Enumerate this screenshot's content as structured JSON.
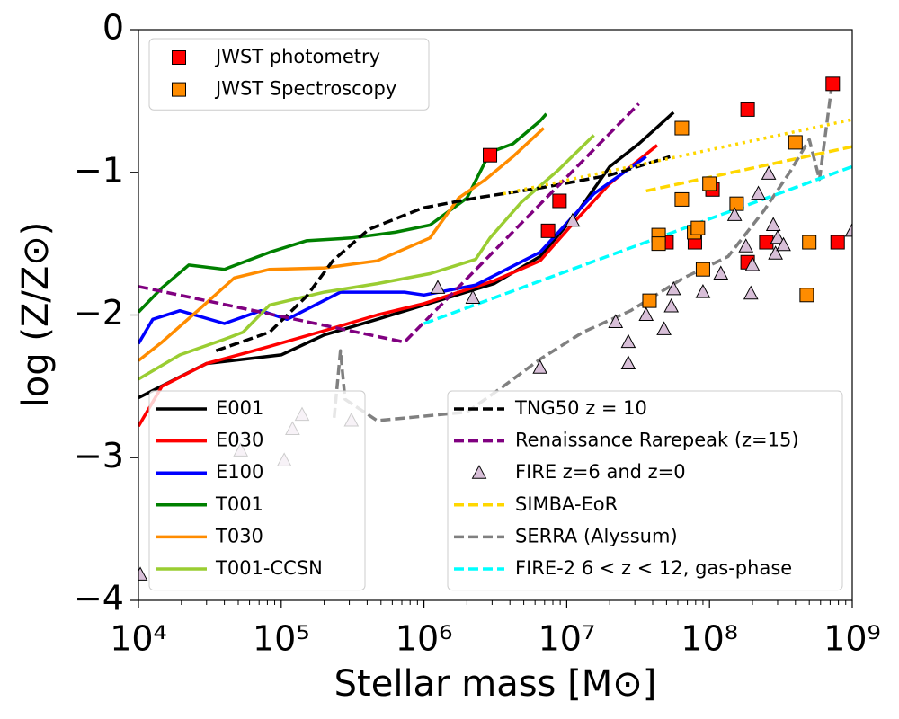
{
  "chart_data": {
    "type": "line",
    "xlabel": "Stellar mass [M⊙]",
    "ylabel": "log (Z/Z⊙)",
    "xscale": "log",
    "xlim": [
      10000,
      1000000000
    ],
    "ylim": [
      -4,
      0
    ],
    "xticks": [
      {
        "value": 10000,
        "label": "10⁴"
      },
      {
        "value": 100000,
        "label": "10⁵"
      },
      {
        "value": 1000000,
        "label": "10⁶"
      },
      {
        "value": 10000000,
        "label": "10⁷"
      },
      {
        "value": 100000000,
        "label": "10⁸"
      },
      {
        "value": 1000000000,
        "label": "10⁹"
      }
    ],
    "yticks": [
      {
        "value": -4,
        "label": "−4"
      },
      {
        "value": -3,
        "label": "−3"
      },
      {
        "value": -2,
        "label": "−2"
      },
      {
        "value": -1,
        "label": "−1"
      },
      0
    ],
    "series": [
      {
        "name": "E001",
        "type": "line",
        "color": "#000000",
        "dash": "solid",
        "legend": "lower left",
        "x": [
          10000,
          30000,
          100000,
          200000,
          470000,
          1000000,
          3100000,
          6500000,
          11500000,
          20000000,
          32000000,
          56000000
        ],
        "values": [
          -2.58,
          -2.34,
          -2.28,
          -2.14,
          -2.03,
          -1.93,
          -1.78,
          -1.59,
          -1.3,
          -0.96,
          -0.8,
          -0.58
        ]
      },
      {
        "name": "E030",
        "type": "line",
        "color": "#ff0000",
        "dash": "solid",
        "legend": "lower left",
        "x": [
          10000,
          14600,
          30000,
          83000,
          200000,
          470000,
          1000000,
          3100000,
          6500000,
          11500000,
          20000000,
          43000000
        ],
        "values": [
          -2.78,
          -2.5,
          -2.34,
          -2.22,
          -2.11,
          -2.0,
          -1.92,
          -1.76,
          -1.62,
          -1.34,
          -1.08,
          -0.81
        ]
      },
      {
        "name": "E100",
        "type": "line",
        "color": "#0000ff",
        "dash": "solid",
        "legend": "lower left",
        "x": [
          10000,
          12600,
          19500,
          40000,
          72000,
          110000,
          260000,
          730000,
          1000000,
          2300000,
          6500000,
          15500000,
          36000000
        ],
        "values": [
          -2.2,
          -2.03,
          -1.97,
          -2.06,
          -1.97,
          -2.03,
          -1.84,
          -1.84,
          -1.86,
          -1.79,
          -1.56,
          -1.15,
          -0.89
        ]
      },
      {
        "name": "T001",
        "type": "line",
        "color": "#008000",
        "dash": "solid",
        "legend": "lower left",
        "x": [
          10000,
          14600,
          22500,
          40000,
          83000,
          150000,
          310000,
          630000,
          1100000,
          2000000,
          2900000,
          4200000,
          6500000,
          7200000
        ],
        "values": [
          -1.98,
          -1.81,
          -1.65,
          -1.68,
          -1.56,
          -1.48,
          -1.46,
          -1.42,
          -1.37,
          -1.18,
          -0.86,
          -0.8,
          -0.64,
          -0.59
        ]
      },
      {
        "name": "T030",
        "type": "line",
        "color": "#ff8c00",
        "dash": "solid",
        "legend": "lower left",
        "x": [
          10000,
          14600,
          26000,
          47000,
          83000,
          200000,
          470000,
          1100000,
          1750000,
          2700000,
          4200000,
          6900000
        ],
        "values": [
          -2.32,
          -2.19,
          -1.97,
          -1.74,
          -1.68,
          -1.67,
          -1.62,
          -1.46,
          -1.18,
          -1.05,
          -0.89,
          -0.69
        ]
      },
      {
        "name": "T001-CCSN",
        "type": "line",
        "color": "#9acd32",
        "dash": "solid",
        "legend": "lower left",
        "x": [
          10000,
          19500,
          40000,
          54000,
          83000,
          200000,
          470000,
          1100000,
          2300000,
          2900000,
          4800000,
          8600000,
          15500000
        ],
        "values": [
          -2.45,
          -2.28,
          -2.17,
          -2.12,
          -1.93,
          -1.84,
          -1.78,
          -1.71,
          -1.61,
          -1.46,
          -1.21,
          -0.99,
          -0.74
        ]
      },
      {
        "name": "JWST photometry",
        "type": "scatter",
        "marker": "square",
        "color": "#ff0000",
        "legend": "upper left",
        "x": [
          2900000,
          7400000,
          8900000,
          50000000,
          79000000,
          105000000,
          185000000,
          185000000,
          250000000,
          730000000,
          790000000
        ],
        "values": [
          -0.88,
          -1.41,
          -1.2,
          -1.49,
          -1.49,
          -1.12,
          -0.56,
          -1.63,
          -1.49,
          -0.38,
          -1.49
        ]
      },
      {
        "name": "JWST Spectroscopy",
        "type": "scatter",
        "marker": "square",
        "color": "#ff8c00",
        "legend": "upper left",
        "x": [
          38000000,
          44000000,
          44000000,
          64000000,
          64000000,
          78000000,
          83000000,
          90000000,
          100000000,
          155000000,
          400000000,
          480000000,
          500000000
        ],
        "values": [
          -1.9,
          -1.44,
          -1.5,
          -0.69,
          -1.19,
          -1.42,
          -1.39,
          -1.68,
          -1.08,
          -1.22,
          -0.79,
          -1.86,
          -1.49
        ]
      },
      {
        "name": "TNG50 z = 10",
        "type": "line",
        "color": "#000000",
        "dash": "dashed",
        "legend": "lower right",
        "x": [
          35000,
          83000,
          150000,
          230000,
          410000,
          980000,
          2300000,
          6500000,
          20000000,
          53000000
        ],
        "values": [
          -2.25,
          -2.12,
          -1.87,
          -1.62,
          -1.4,
          -1.25,
          -1.18,
          -1.11,
          -1.02,
          -0.89
        ]
      },
      {
        "name": "Renaissance Rarepeak (z=15)",
        "type": "line",
        "color": "#800080",
        "dash": "dashed",
        "legend": "lower right",
        "x": [
          10000,
          730000,
          32000000
        ],
        "values": [
          -1.8,
          -2.19,
          -0.52
        ]
      },
      {
        "name": "FIRE z=6 and z=0",
        "type": "scatter",
        "marker": "triangle",
        "color": "#d8bfd8",
        "legend": "lower right",
        "x": [
          10300,
          52000,
          105000,
          120000,
          140000,
          310000,
          1250000,
          2200000,
          6500000,
          11000000,
          22000000,
          27000000,
          27000000,
          36000000,
          48000000,
          54000000,
          56000000,
          90000000,
          120000000,
          150000000,
          180000000,
          195000000,
          200000000,
          220000000,
          260000000,
          280000000,
          290000000,
          300000000,
          330000000,
          1000000000
        ],
        "values": [
          -3.82,
          -2.95,
          -3.02,
          -2.8,
          -2.7,
          -2.74,
          -1.81,
          -1.88,
          -2.37,
          -1.34,
          -2.05,
          -2.19,
          -2.34,
          -2.0,
          -2.1,
          -1.94,
          -1.82,
          -1.84,
          -1.71,
          -1.3,
          -1.52,
          -1.85,
          -1.65,
          -1.15,
          -1.01,
          -1.37,
          -1.57,
          -1.46,
          -1.51,
          -1.41
        ]
      },
      {
        "name": "SIMBA-EoR",
        "type": "line",
        "color": "#ffd700",
        "dash": "dashed",
        "legend": "lower right",
        "x": [
          36000000,
          1000000000
        ],
        "values": [
          -1.13,
          -0.82
        ],
        "extrapolation": {
          "dash": "dotted",
          "x": [
            3600000,
            1000000000
          ],
          "values": [
            -1.15,
            -0.63
          ]
        }
      },
      {
        "name": "SERRA (Alyssum)",
        "type": "line",
        "color": "#808080",
        "dash": "dashed",
        "legend": "lower right",
        "x": [
          235000,
          260000,
          280000,
          470000,
          2000000,
          3600000,
          6500000,
          13000000,
          28000000,
          66000000,
          135000000,
          240000000,
          370000000,
          500000000,
          590000000,
          720000000
        ],
        "values": [
          -2.72,
          -2.25,
          -2.59,
          -2.74,
          -2.68,
          -2.5,
          -2.31,
          -2.12,
          -1.97,
          -1.74,
          -1.59,
          -1.27,
          -0.99,
          -0.77,
          -1.05,
          -0.39
        ]
      },
      {
        "name": "FIRE-2 6 < z < 12, gas-phase",
        "type": "line",
        "color": "#00ffff",
        "dash": "dashed",
        "legend": "lower right",
        "x": [
          1000000,
          1000000000
        ],
        "values": [
          -2.06,
          -0.96
        ]
      }
    ]
  }
}
